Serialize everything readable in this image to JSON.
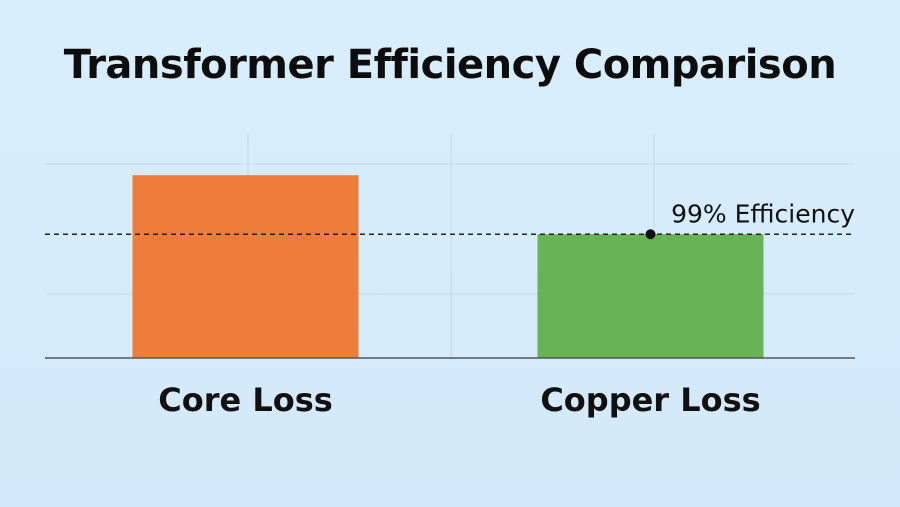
{
  "chart_data": {
    "type": "bar",
    "title": "Transformer Efficiency Comparison",
    "categories": [
      "Core Loss",
      "Copper Loss"
    ],
    "values": [
      1.3,
      0.88
    ],
    "ylim": [
      0,
      1.6
    ],
    "grid": true,
    "legend": "none",
    "reference_line": {
      "value": 0.88,
      "label": "99% Efficiency",
      "style": "dashed"
    },
    "colors": [
      "#ee7d3b",
      "#68b354"
    ],
    "axis_color": "#555555",
    "grid_color": "#c5d8e6"
  }
}
